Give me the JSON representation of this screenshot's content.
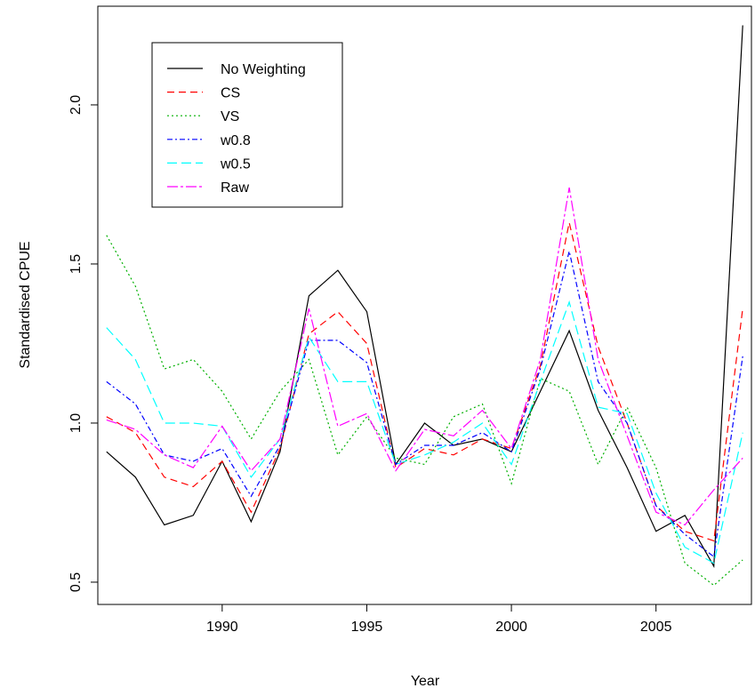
{
  "chart_data": {
    "type": "line",
    "title": "",
    "xlabel": "Year",
    "ylabel": "Standardised CPUE",
    "xlim": [
      1985.7,
      2008.3
    ],
    "ylim": [
      0.43,
      2.31
    ],
    "xticks": [
      1990,
      1995,
      2000,
      2005
    ],
    "xtick_labels": [
      "1990",
      "1995",
      "2000",
      "2005"
    ],
    "yticks": [
      0.5,
      1.0,
      1.5,
      2.0
    ],
    "ytick_labels": [
      "0.5",
      "1.0",
      "1.5",
      "2.0"
    ],
    "grid": false,
    "legend_position": "top-left",
    "x": [
      1986,
      1987,
      1988,
      1989,
      1990,
      1991,
      1992,
      1993,
      1994,
      1995,
      1996,
      1997,
      1998,
      1999,
      2000,
      2001,
      2002,
      2003,
      2004,
      2005,
      2006,
      2007,
      2008
    ],
    "series": [
      {
        "name": "No Weighting",
        "color": "#000000",
        "dash": "",
        "values": [
          0.91,
          0.83,
          0.68,
          0.71,
          0.88,
          0.69,
          0.91,
          1.4,
          1.48,
          1.35,
          0.87,
          1.0,
          0.93,
          0.95,
          0.91,
          1.1,
          1.29,
          1.04,
          0.86,
          0.66,
          0.71,
          0.55,
          2.25
        ]
      },
      {
        "name": "CS",
        "color": "#ff0000",
        "dash": "8,5",
        "values": [
          1.02,
          0.97,
          0.83,
          0.8,
          0.88,
          0.72,
          0.92,
          1.28,
          1.35,
          1.25,
          0.86,
          0.92,
          0.9,
          0.95,
          0.92,
          1.18,
          1.63,
          1.24,
          1.0,
          0.74,
          0.66,
          0.63,
          1.36
        ]
      },
      {
        "name": "VS",
        "color": "#00b000",
        "dash": "2,3",
        "values": [
          1.59,
          1.43,
          1.17,
          1.2,
          1.1,
          0.95,
          1.1,
          1.2,
          0.9,
          1.02,
          0.89,
          0.87,
          1.02,
          1.06,
          0.81,
          1.14,
          1.1,
          0.87,
          1.05,
          0.86,
          0.56,
          0.49,
          0.57
        ]
      },
      {
        "name": "w0.8",
        "color": "#0000ff",
        "dash": "6,3,2,3",
        "values": [
          1.13,
          1.06,
          0.9,
          0.88,
          0.92,
          0.77,
          0.93,
          1.26,
          1.26,
          1.19,
          0.87,
          0.93,
          0.93,
          0.97,
          0.91,
          1.17,
          1.54,
          1.13,
          1.0,
          0.74,
          0.65,
          0.58,
          1.21
        ]
      },
      {
        "name": "w0.5",
        "color": "#00ffff",
        "dash": "11,5",
        "values": [
          1.3,
          1.2,
          1.0,
          1.0,
          0.99,
          0.83,
          0.95,
          1.27,
          1.13,
          1.13,
          0.87,
          0.9,
          0.94,
          1.0,
          0.87,
          1.13,
          1.38,
          1.05,
          1.03,
          0.78,
          0.61,
          0.56,
          0.97
        ]
      },
      {
        "name": "Raw",
        "color": "#ff00ff",
        "dash": "12,3,3,3",
        "values": [
          1.01,
          0.98,
          0.9,
          0.86,
          0.99,
          0.85,
          0.95,
          1.36,
          0.99,
          1.03,
          0.85,
          0.98,
          0.96,
          1.04,
          0.92,
          1.2,
          1.74,
          1.2,
          0.96,
          0.72,
          0.68,
          0.79,
          0.89
        ]
      }
    ]
  }
}
